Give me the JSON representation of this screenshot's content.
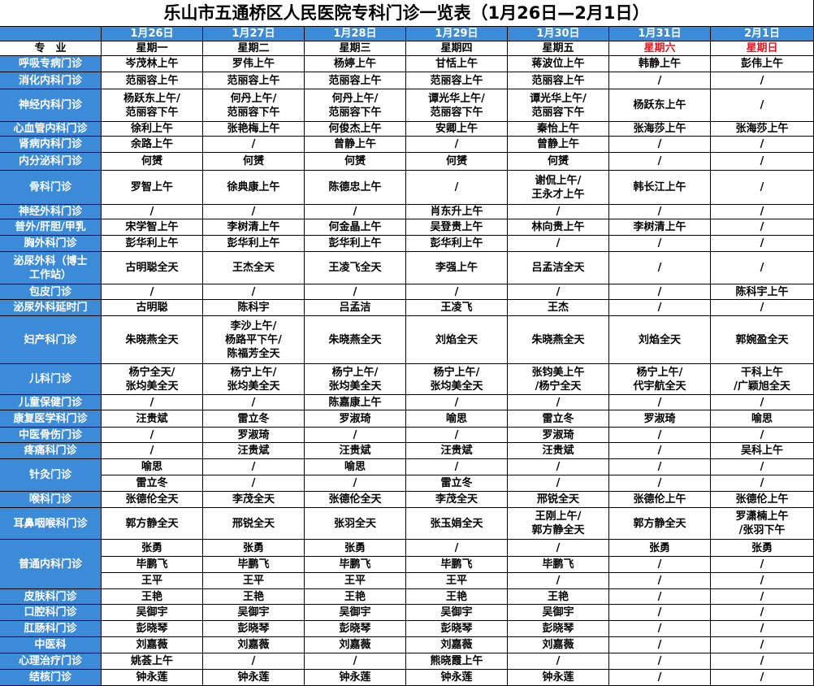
{
  "title": "乐山市五通桥区人民医院专科门诊一览表（1月26日—2月1日）",
  "header": {
    "dates": [
      "1月26日",
      "1月27日",
      "1月28日",
      "1月29日",
      "1月30日",
      "1月31日",
      "2月1日"
    ],
    "corner": "专　业",
    "weekdays": [
      "星期一",
      "星期二",
      "星期三",
      "星期四",
      "星期五",
      "星期六",
      "星期日"
    ]
  },
  "table": {
    "rows": [
      {
        "department": "呼吸专病门诊",
        "subrows": [
          [
            "岑茂林上午",
            "罗伟上午",
            "杨婷上午",
            "甘恬上午",
            "蒋波位上午",
            "韩静上午",
            "彭伟上午"
          ]
        ]
      },
      {
        "department": "消化内科门诊",
        "subrows": [
          [
            "范丽容上午",
            "范丽容上午",
            "范丽容上午",
            "范丽容上午",
            "范丽容上午",
            "/",
            "/"
          ]
        ]
      },
      {
        "department": "神经内科门诊",
        "subrows": [
          [
            "杨跃东上午/\n范丽容下午",
            "何丹上午/\n范丽容下午",
            "何丹上午/\n范丽容下午",
            "谭光华上午/\n范丽容下午",
            "谭光华上午/\n范丽容下午",
            "杨跃东上午",
            "/"
          ]
        ]
      },
      {
        "department": "心血管内科门诊",
        "subrows": [
          [
            "徐利上午",
            "张艳梅上午",
            "何俊杰上午",
            "安卿上午",
            "秦怡上午",
            "张海莎上午",
            "张海莎上午"
          ]
        ]
      },
      {
        "department": "肾病内科门诊",
        "subrows": [
          [
            "余路上午",
            "/",
            "曾静上午",
            "/",
            "曾静上午",
            "/",
            "/"
          ]
        ]
      },
      {
        "department": "内分泌科门诊",
        "subrows": [
          [
            "何赟",
            "何赟",
            "何赟",
            "何赟",
            "何赟",
            "/",
            "/"
          ]
        ]
      },
      {
        "department": "骨科门诊",
        "subrows": [
          [
            "罗智上午",
            "徐典康上午",
            "陈德忠上午",
            "/",
            "谢侃上午/\n王永才上午",
            "韩长江上午",
            "/"
          ]
        ]
      },
      {
        "department": "神经外科门诊",
        "subrows": [
          [
            "/",
            "/",
            "/",
            "肖东升上午",
            "/",
            "/",
            "/"
          ]
        ]
      },
      {
        "department": "普外/肝胆/甲乳",
        "subrows": [
          [
            "宋学智上午",
            "李树清上午",
            "何金晶上午",
            "吴登贵上午",
            "林向贵上午",
            "李树清上午",
            "/"
          ]
        ]
      },
      {
        "department": "胸外科门诊",
        "subrows": [
          [
            "彭华利上午",
            "彭华利上午",
            "彭华利上午",
            "彭华利上午",
            "/",
            "/",
            "/"
          ]
        ]
      },
      {
        "department": "泌尿外科（博士\n工作站）",
        "subrows": [
          [
            "古明聪全天",
            "王杰全天",
            "王凌飞全天",
            "李强上午",
            "吕孟洁全天",
            "/",
            "/"
          ]
        ]
      },
      {
        "department": "包皮门诊",
        "subrows": [
          [
            "/",
            "/",
            "/",
            "/",
            "/",
            "/",
            "陈科宇上午"
          ]
        ]
      },
      {
        "department": "泌尿外科延时门",
        "subrows": [
          [
            "古明聪",
            "陈科宇",
            "吕孟洁",
            "王凌飞",
            "王杰",
            "/",
            "/"
          ]
        ]
      },
      {
        "department": "妇产科门诊",
        "subrows": [
          [
            "朱晓燕全天",
            "李沙上午/\n杨路平下午/\n陈福芳全天",
            "朱晓燕全天",
            "刘焰全天",
            "朱晓燕全天",
            "刘焰全天",
            "郭婉盈全天"
          ]
        ]
      },
      {
        "department": "儿科门诊",
        "subrows": [
          [
            "杨宁全天/\n张均美全天",
            "杨宁上午/\n张均美全天",
            "杨宁上午/\n张均美全天",
            "杨宁上午/\n张均美全天",
            "张钧美上午\n/杨宁全天",
            "杨宁上午/\n代宇航全天",
            "干科上午\n/广颖旭全天"
          ]
        ]
      },
      {
        "department": "儿童保健门诊",
        "subrows": [
          [
            "/",
            "/",
            "陈嘉康上午",
            "/",
            "/",
            "/",
            "/"
          ]
        ]
      },
      {
        "department": "康复医学科门诊",
        "subrows": [
          [
            "汪贵斌",
            "雷立冬",
            "罗淑琦",
            "喻思",
            "雷立冬",
            "罗淑琦",
            "喻思"
          ]
        ]
      },
      {
        "department": "中医骨伤门诊",
        "subrows": [
          [
            "/",
            "罗淑琦",
            "/",
            "/",
            "罗淑琦",
            "/",
            "/"
          ]
        ]
      },
      {
        "department": "疼痛科门诊",
        "subrows": [
          [
            "/",
            "汪贵斌",
            "汪贵斌",
            "汪贵斌",
            "汪贵斌",
            "/",
            "吴科上午"
          ]
        ]
      },
      {
        "department": "针灸门诊",
        "subrows": [
          [
            "喻思",
            "/",
            "喻思",
            "/",
            "/",
            "/",
            "/"
          ],
          [
            "雷立冬",
            "/",
            "/",
            "雷立冬",
            "/",
            "/",
            "/"
          ]
        ]
      },
      {
        "department": "喉科门诊",
        "subrows": [
          [
            "张德伦全天",
            "李茂全天",
            "张德伦全天",
            "李茂全天",
            "邢锐全天",
            "张德伦上午",
            "张德伦上午"
          ]
        ]
      },
      {
        "department": "耳鼻咽喉科门诊",
        "subrows": [
          [
            "郭方静全天",
            "邢锐全天",
            "张羽全天",
            "张玉娟全天",
            "王刚上午/\n郭方静全天",
            "郭方静全天",
            "罗潇楠上午\n/张羽下午"
          ]
        ]
      },
      {
        "department": "普通内科门诊",
        "subrows": [
          [
            "张勇",
            "张勇",
            "张勇",
            "/",
            "/",
            "张勇",
            "张勇"
          ],
          [
            "毕鹏飞",
            "毕鹏飞",
            "毕鹏飞",
            "毕鹏飞",
            "毕鹏飞",
            "/",
            "/"
          ],
          [
            "王平",
            "王平",
            "王平",
            "王平",
            "/",
            "/",
            "/"
          ]
        ]
      },
      {
        "department": "皮肤科门诊",
        "subrows": [
          [
            "王艳",
            "王艳",
            "王艳",
            "王艳",
            "王艳",
            "/",
            "/"
          ]
        ]
      },
      {
        "department": "口腔科门诊",
        "subrows": [
          [
            "吴御宇",
            "吴御宇",
            "吴御宇",
            "吴御宇",
            "吴御宇",
            "/",
            "/"
          ]
        ]
      },
      {
        "department": "肛肠科门诊",
        "subrows": [
          [
            "彭晓琴",
            "彭晓琴",
            "彭晓琴",
            "彭晓琴",
            "彭晓琴",
            "/",
            "/"
          ]
        ]
      },
      {
        "department": "中医科",
        "subrows": [
          [
            "刘嘉薇",
            "刘嘉薇",
            "刘嘉薇",
            "刘嘉薇",
            "刘嘉薇",
            "/",
            "/"
          ]
        ]
      },
      {
        "department": "心理治疗门诊",
        "subrows": [
          [
            "姚荟上午",
            "/",
            "/",
            "熊晓霞上午",
            "/",
            "/",
            "/"
          ]
        ]
      },
      {
        "department": "结核门诊",
        "subrows": [
          [
            "钟永莲",
            "钟永莲",
            "钟永莲",
            "钟永莲",
            "钟永莲",
            "/",
            "/"
          ]
        ]
      }
    ]
  }
}
